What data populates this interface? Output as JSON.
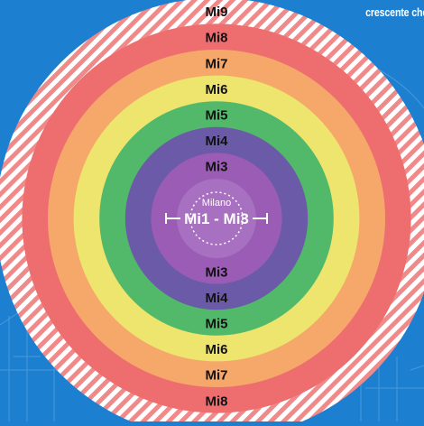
{
  "corner_caption": "crescente che",
  "center": {
    "city_label": "Milano",
    "center_range_label": "Mi1 - Mi3"
  },
  "rings": [
    {
      "label": "Mi3",
      "color": "#9b5cb5"
    },
    {
      "label": "Mi4",
      "color": "#6a5aa8"
    },
    {
      "label": "Mi5",
      "color": "#52b96a"
    },
    {
      "label": "Mi6",
      "color": "#ede56e"
    },
    {
      "label": "Mi7",
      "color": "#f5a86a"
    },
    {
      "label": "Mi8",
      "color": "#ee6e70"
    },
    {
      "label": "Mi9",
      "color": "hatched"
    }
  ],
  "colors": {
    "background": "#1c7fd0",
    "center_disk": "#a870c0",
    "hatch_stripe": "#f08a8a",
    "hatch_base": "#ffffff",
    "label_text": "#111111",
    "center_text": "#ffffff"
  }
}
